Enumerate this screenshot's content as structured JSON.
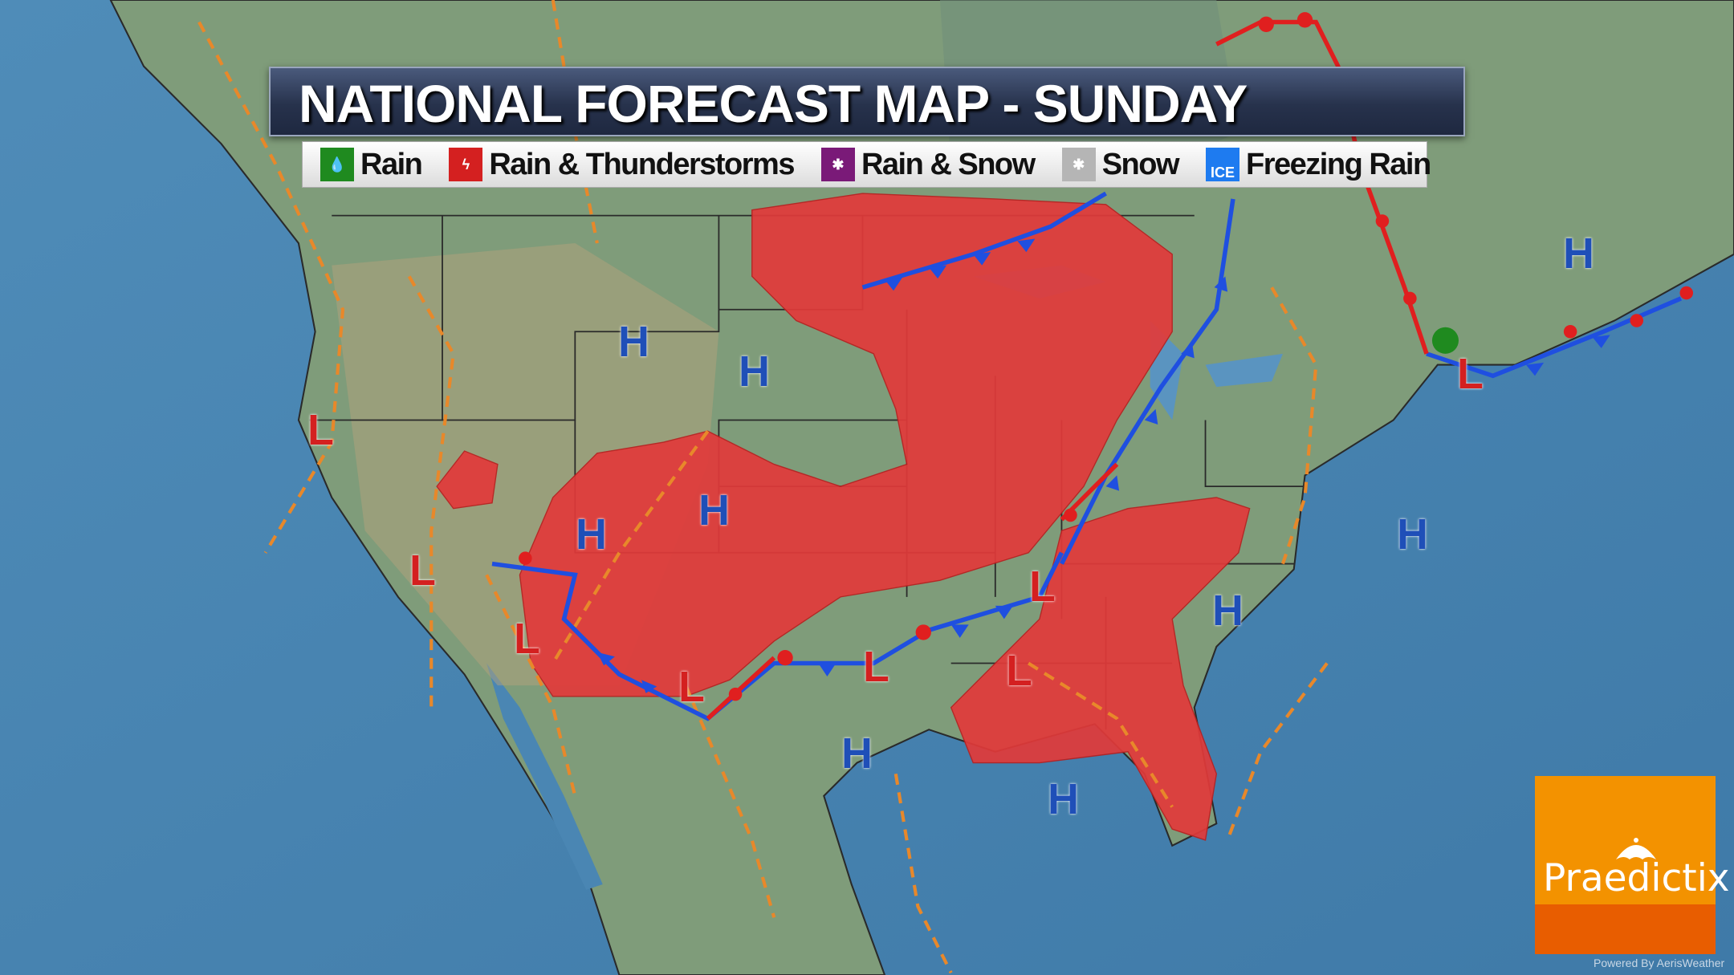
{
  "title": "NATIONAL FORECAST MAP - SUNDAY",
  "legend": [
    {
      "label": "Rain",
      "color": "#1f8a1f",
      "icon": "raindrop-icon"
    },
    {
      "label": "Rain & Thunderstorms",
      "color": "#d42020",
      "icon": "lightning-icon"
    },
    {
      "label": "Rain & Snow",
      "color": "#7a1a78",
      "icon": "snowflake-icon"
    },
    {
      "label": "Snow",
      "color": "#b5b5b5",
      "icon": "snowflake-icon"
    },
    {
      "label": "Freezing Rain",
      "color": "#1e7bf0",
      "icon": "ice-icon",
      "badge": "ICE"
    }
  ],
  "pressure": {
    "high": "H",
    "low": "L",
    "high_color": "#1f4fb8",
    "low_color": "#d42020"
  },
  "colors": {
    "ocean": "#4a86b3",
    "land": "#7d9a78",
    "thunderstorm_area": "#e23a3a",
    "cold_front": "#1f4fe0",
    "warm_front": "#e01f1f",
    "trough": "#e8882a"
  },
  "logo": {
    "brand": "Praedictix",
    "color": "#f39200"
  },
  "credit": "Powered By AerisWeather"
}
